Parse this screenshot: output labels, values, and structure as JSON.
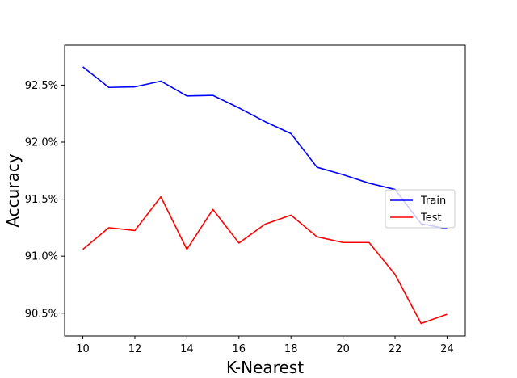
{
  "chart_data": {
    "type": "line",
    "title": "",
    "xlabel": "K-Nearest",
    "ylabel": "Accuracy",
    "xlim": [
      9.3,
      24.7
    ],
    "ylim": [
      90.3,
      92.85
    ],
    "xticks": [
      10,
      12,
      14,
      16,
      18,
      20,
      22,
      24
    ],
    "xtick_labels": [
      "10",
      "12",
      "14",
      "16",
      "18",
      "20",
      "22",
      "24"
    ],
    "yticks": [
      90.5,
      91.0,
      91.5,
      92.0,
      92.5
    ],
    "ytick_labels": [
      "90.5%",
      "91.0%",
      "91.5%",
      "92.0%",
      "92.5%"
    ],
    "grid": false,
    "legend_position": "center-right",
    "x": [
      10,
      11,
      12,
      13,
      14,
      15,
      16,
      17,
      18,
      19,
      20,
      21,
      22,
      23,
      24
    ],
    "series": [
      {
        "name": "Train",
        "color": "#0000ff",
        "values": [
          92.66,
          92.48,
          92.485,
          92.535,
          92.405,
          92.41,
          92.3,
          92.18,
          92.075,
          91.78,
          91.715,
          91.64,
          91.585,
          91.285,
          91.24
        ]
      },
      {
        "name": "Test",
        "color": "#ff0000",
        "values": [
          91.06,
          91.25,
          91.225,
          91.52,
          91.06,
          91.41,
          91.115,
          91.28,
          91.36,
          91.17,
          91.12,
          91.12,
          90.84,
          90.41,
          90.49
        ]
      }
    ]
  }
}
